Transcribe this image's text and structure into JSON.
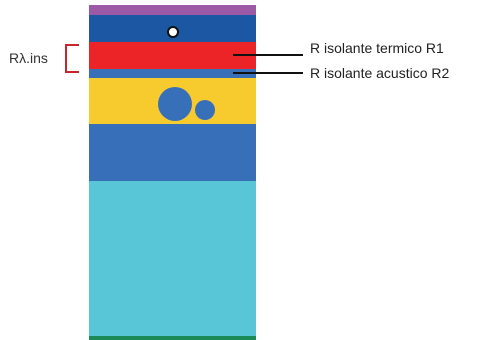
{
  "diagram": {
    "labels": {
      "left_bracket": "Rλ.ins",
      "callout_1": "R isolante termico R1",
      "callout_2": "R isolante acustico R2"
    },
    "colors": {
      "top_strip": "#9c59a5",
      "dark_blue": "#1c57a4",
      "red": "#ec2327",
      "medium_blue": "#3770b9",
      "yellow": "#f7cb2e",
      "light_cyan": "#58c6d6",
      "bottom_strip": "#1b8a57",
      "bracket": "#c9252c",
      "leader": "#111111",
      "dot_outline": "#111111",
      "dot_fill": "#ffffff"
    }
  }
}
